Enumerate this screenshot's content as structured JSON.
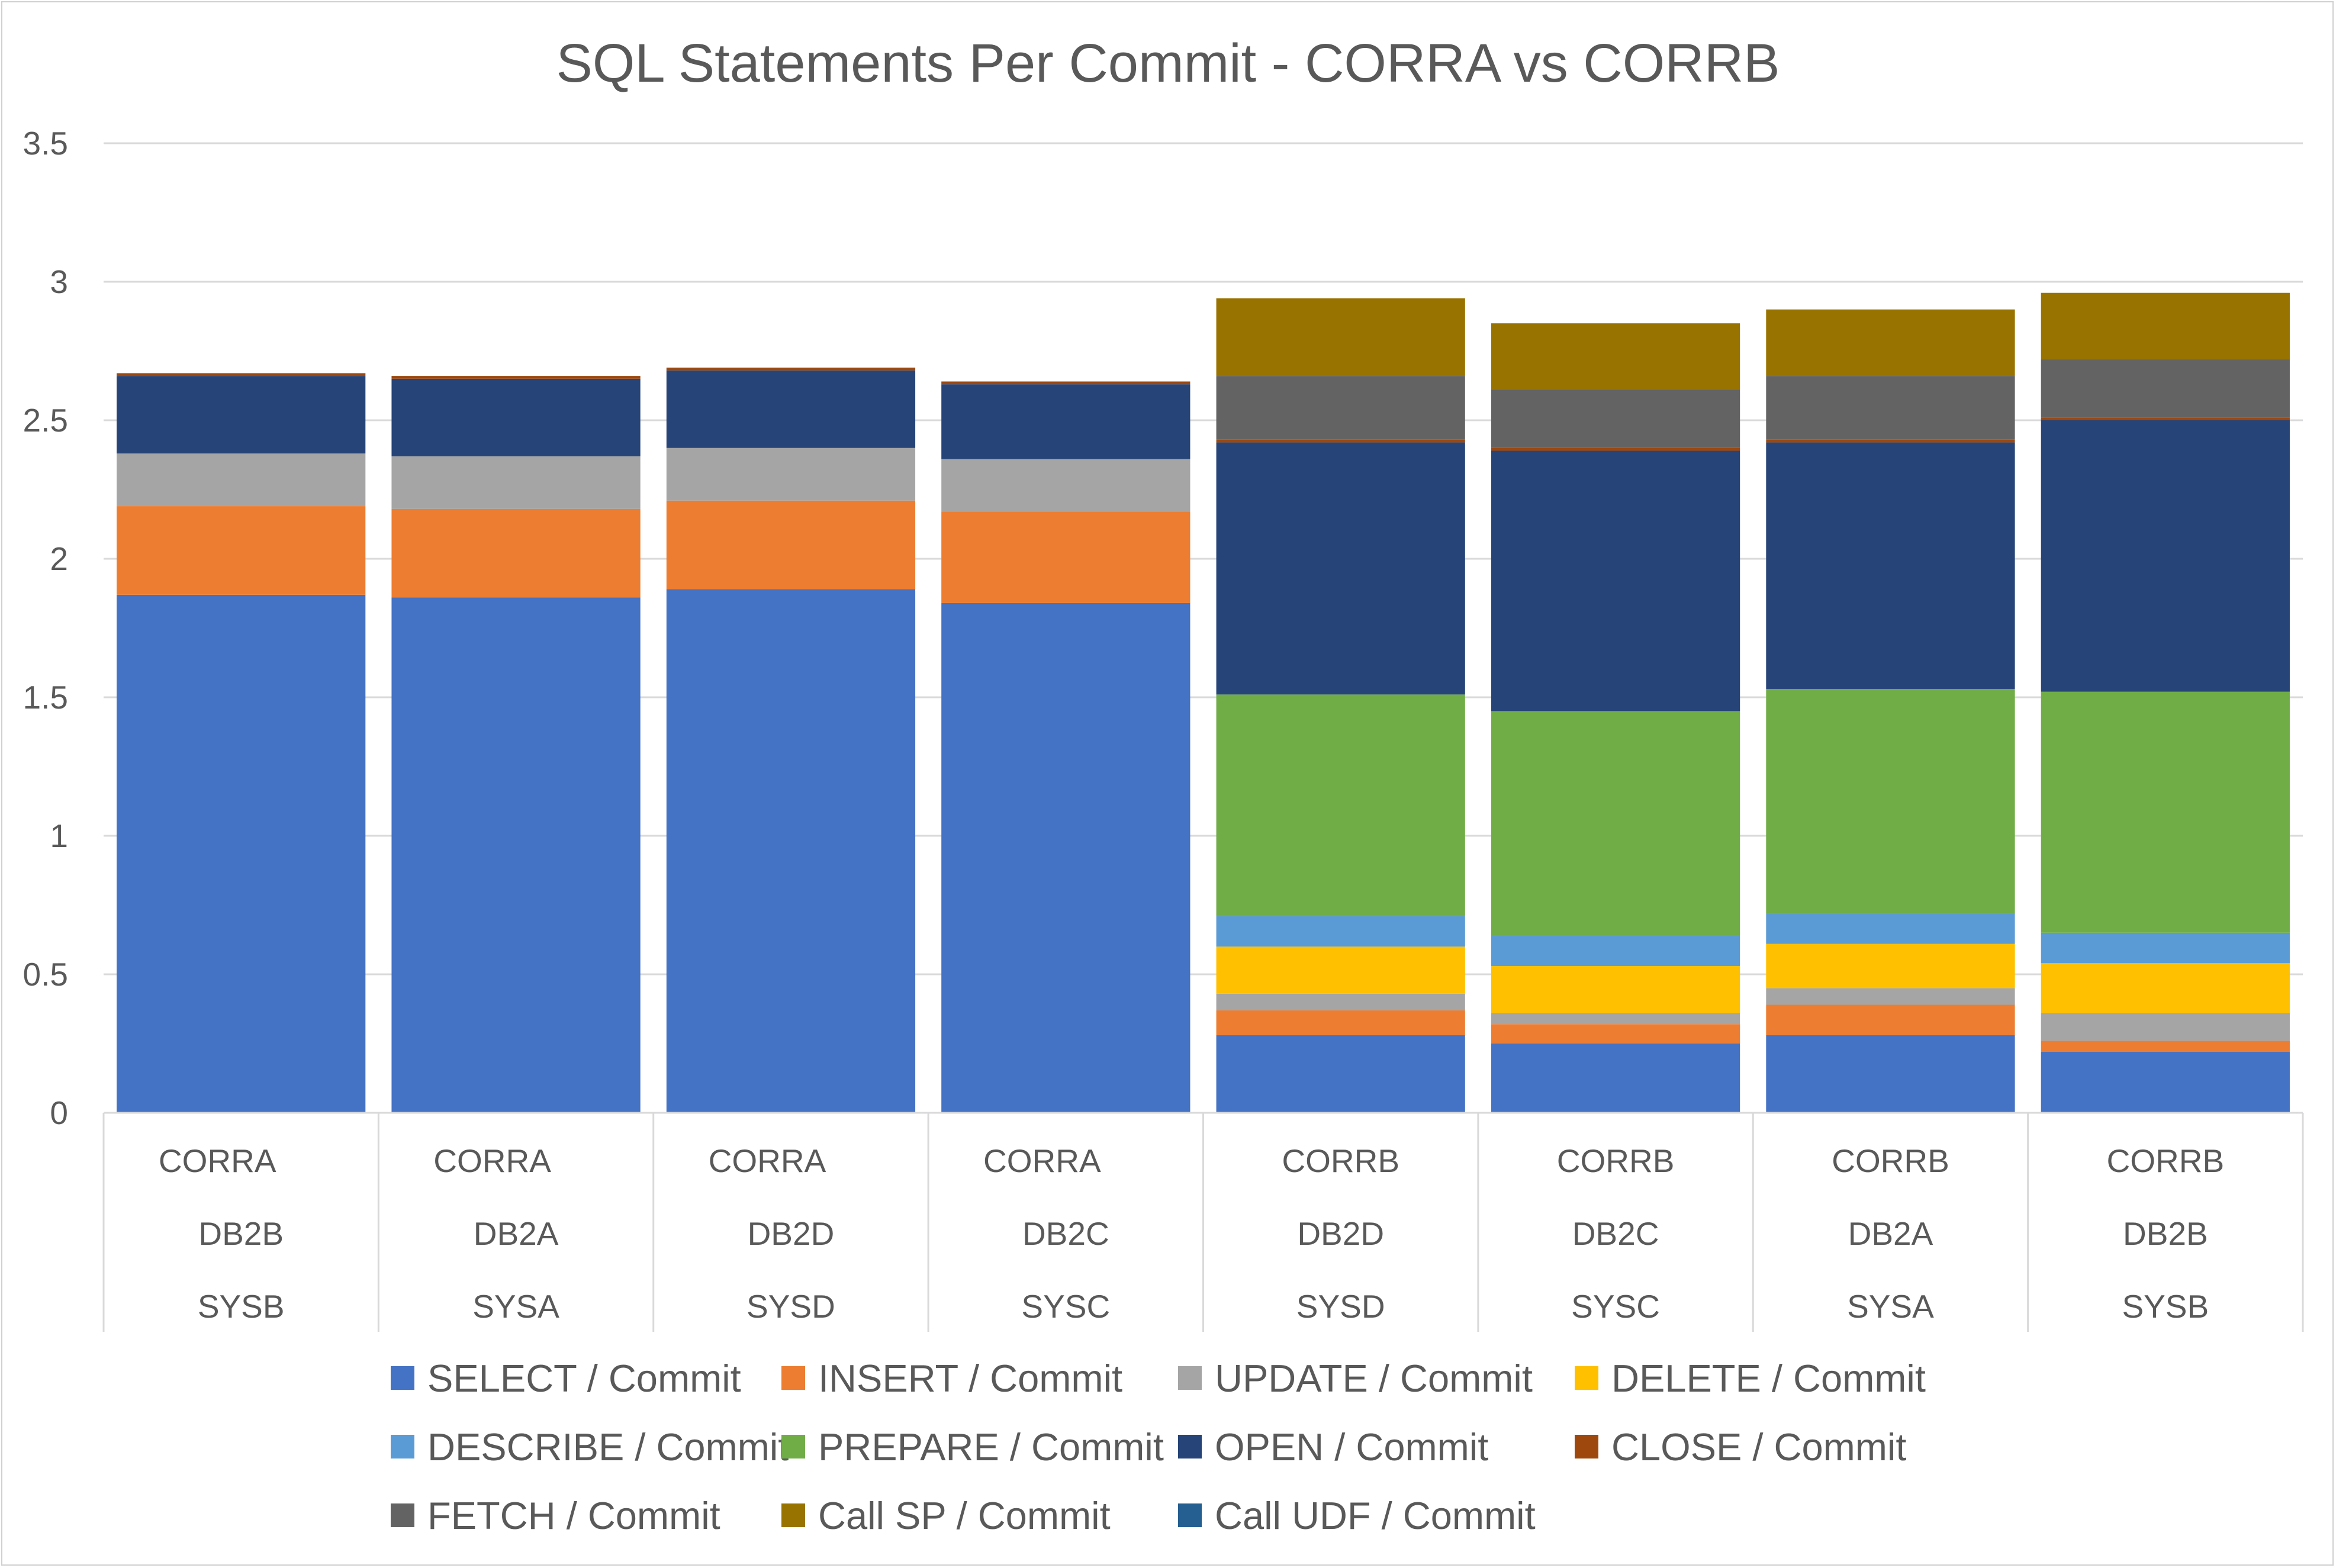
{
  "chart_data": {
    "type": "bar",
    "stacked": true,
    "title": "SQL Statements Per Commit - CORRA vs CORRB",
    "ylim": [
      0,
      3.5
    ],
    "yticks": [
      "0",
      "0.5",
      "1",
      "1.5",
      "2",
      "2.5",
      "3",
      "3.5"
    ],
    "grid": true,
    "legend_position": "bottom",
    "categories": [
      {
        "levels": [
          "CORRA",
          "DB2B",
          "SYSB"
        ]
      },
      {
        "levels": [
          "CORRA",
          "DB2A",
          "SYSA"
        ]
      },
      {
        "levels": [
          "CORRA",
          "DB2D",
          "SYSD"
        ]
      },
      {
        "levels": [
          "CORRA",
          "DB2C",
          "SYSC"
        ]
      },
      {
        "levels": [
          "CORRB",
          "DB2D",
          "SYSD"
        ]
      },
      {
        "levels": [
          "CORRB",
          "DB2C",
          "SYSC"
        ]
      },
      {
        "levels": [
          "CORRB",
          "DB2A",
          "SYSA"
        ]
      },
      {
        "levels": [
          "CORRB",
          "DB2B",
          "SYSB"
        ]
      }
    ],
    "series": [
      {
        "name": "SELECT / Commit",
        "color": "#4472C4",
        "values": [
          1.87,
          1.86,
          1.89,
          1.84,
          0.28,
          0.25,
          0.28,
          0.22
        ]
      },
      {
        "name": "INSERT / Commit",
        "color": "#ED7D31",
        "values": [
          0.32,
          0.32,
          0.32,
          0.33,
          0.09,
          0.07,
          0.11,
          0.04
        ]
      },
      {
        "name": "UPDATE / Commit",
        "color": "#A5A5A5",
        "values": [
          0.19,
          0.19,
          0.19,
          0.19,
          0.06,
          0.04,
          0.06,
          0.1
        ]
      },
      {
        "name": "DELETE / Commit",
        "color": "#FFC000",
        "values": [
          0,
          0,
          0,
          0,
          0.17,
          0.17,
          0.16,
          0.18
        ]
      },
      {
        "name": "DESCRIBE / Commit",
        "color": "#5B9BD5",
        "values": [
          0,
          0,
          0,
          0,
          0.11,
          0.11,
          0.11,
          0.11
        ]
      },
      {
        "name": "PREPARE / Commit",
        "color": "#70AD47",
        "values": [
          0,
          0,
          0,
          0,
          0.8,
          0.81,
          0.81,
          0.87
        ]
      },
      {
        "name": "OPEN / Commit",
        "color": "#264478",
        "values": [
          0.28,
          0.28,
          0.28,
          0.27,
          0.91,
          0.94,
          0.89,
          0.98
        ]
      },
      {
        "name": "CLOSE / Commit",
        "color": "#9E480E",
        "values": [
          0.01,
          0.01,
          0.01,
          0.01,
          0.01,
          0.01,
          0.01,
          0.01
        ]
      },
      {
        "name": "FETCH / Commit",
        "color": "#636363",
        "values": [
          0,
          0,
          0,
          0,
          0.23,
          0.21,
          0.23,
          0.21
        ]
      },
      {
        "name": "Call SP / Commit",
        "color": "#997300",
        "values": [
          0,
          0,
          0,
          0,
          0.28,
          0.24,
          0.24,
          0.24
        ]
      },
      {
        "name": "Call UDF / Commit",
        "color": "#255E91",
        "values": [
          0,
          0,
          0,
          0,
          0,
          0,
          0,
          0
        ]
      }
    ]
  }
}
